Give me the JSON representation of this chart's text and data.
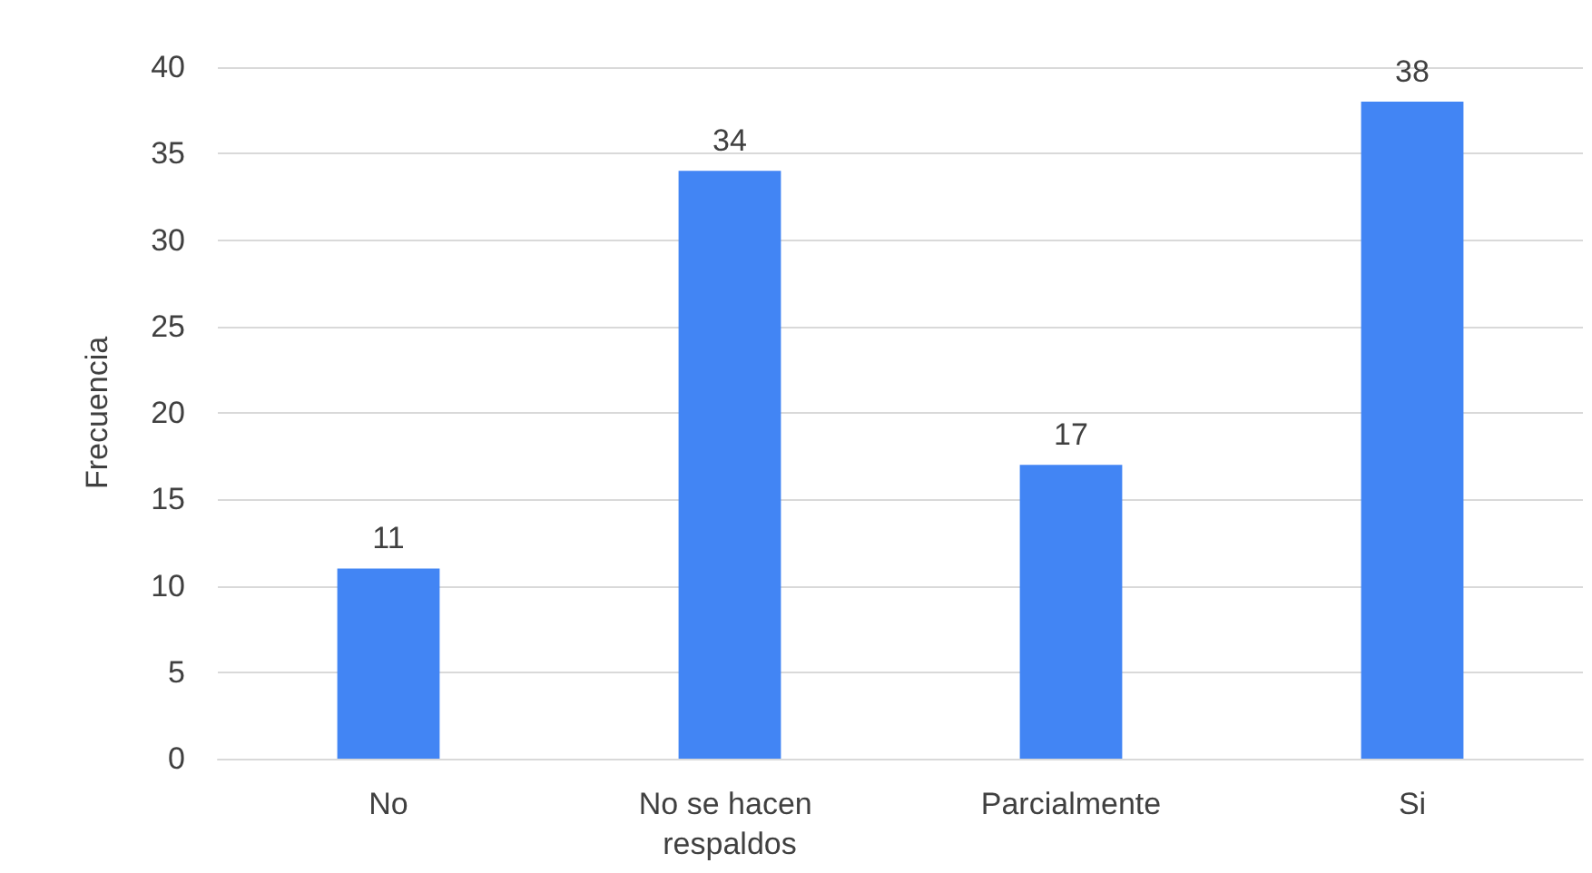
{
  "chart_data": {
    "type": "bar",
    "ylabel": "Frecuencia",
    "categories": [
      "No",
      "No se hacen respaldos",
      "Parcialmente",
      "Si"
    ],
    "values": [
      11,
      34,
      17,
      38
    ],
    "color": "#4285f4",
    "ylim": [
      0,
      40
    ],
    "yticks": [
      0,
      5,
      10,
      15,
      20,
      25,
      30,
      35,
      40
    ],
    "grid": "y",
    "data_labels": true
  }
}
